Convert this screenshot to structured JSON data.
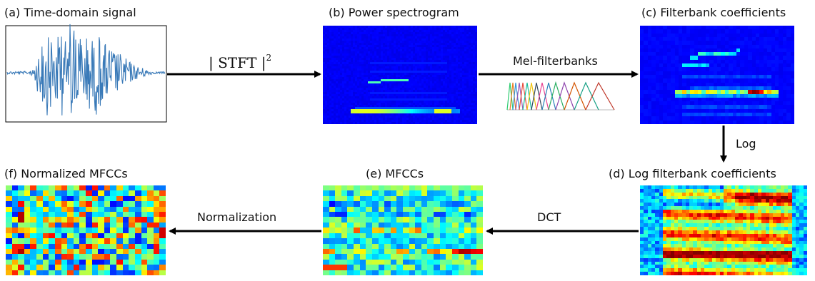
{
  "panels": {
    "a": {
      "title": "(a) Time-domain signal"
    },
    "b": {
      "title": "(b) Power spectrogram"
    },
    "c": {
      "title": "(c) Filterbank coefficients"
    },
    "d": {
      "title": "(d) Log filterbank coefficients"
    },
    "e": {
      "title": "(e) MFCCs"
    },
    "f": {
      "title": "(f) Normalized MFCCs"
    }
  },
  "steps": {
    "stft": {
      "text": "| STFT |",
      "exponent": "2"
    },
    "mel": {
      "label": "Mel-filterbanks"
    },
    "log": {
      "label": "Log"
    },
    "dct": {
      "label": "DCT"
    },
    "norm": {
      "label": "Normalization"
    }
  },
  "colors": {
    "waveform": "#3a7ab8",
    "arrow": "#000000",
    "jet_low": "#00007f",
    "jet_high": "#7f0000"
  }
}
